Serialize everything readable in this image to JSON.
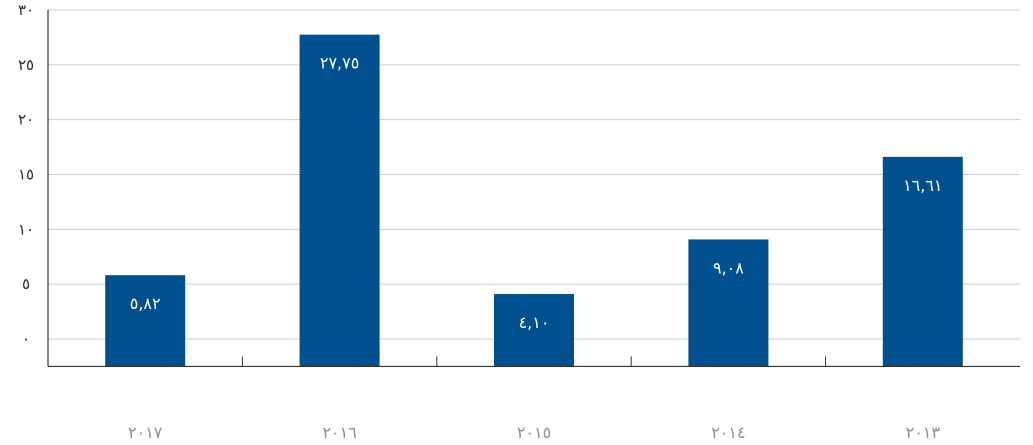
{
  "chart_data": {
    "type": "bar",
    "title": "",
    "xlabel": "",
    "ylabel": "",
    "categories": [
      "٢٠١٧",
      "٢٠١٦",
      "٢٠١٥",
      "٢٠١٤",
      "٢٠١٣"
    ],
    "values": [
      5.82,
      27.75,
      4.1,
      9.08,
      16.61
    ],
    "value_labels": [
      "٥,٨٢",
      "٢٧,٧٥",
      "٤,١٠",
      "٩,٠٨",
      "١٦,٦١"
    ],
    "ylim": [
      -2.5,
      30
    ],
    "yticks": [
      0,
      5,
      10,
      15,
      20,
      25,
      30
    ],
    "ytick_labels": [
      "٠",
      "٥",
      "١٠",
      "١٥",
      "٢٠",
      "٢٥",
      "٣٠"
    ],
    "grid": true,
    "colors": {
      "bar": "#00508f",
      "grid": "#c9ccd1",
      "axis": "#333333"
    }
  }
}
